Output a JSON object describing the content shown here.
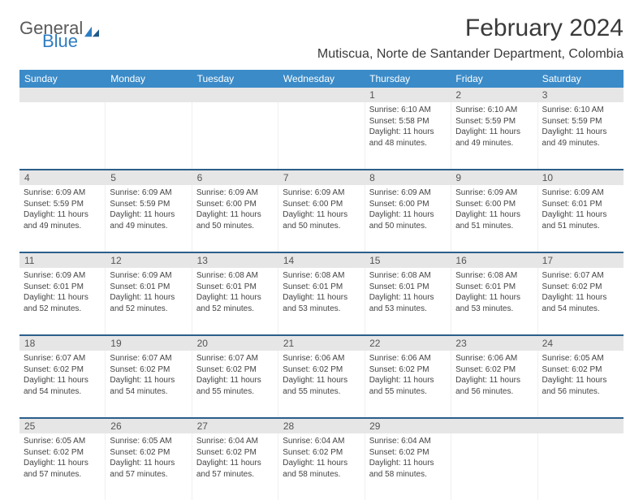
{
  "logo": {
    "text1": "General",
    "text2": "Blue"
  },
  "title": "February 2024",
  "location": "Mutiscua, Norte de Santander Department, Colombia",
  "colors": {
    "header_bg": "#3b8bc8",
    "header_text": "#ffffff",
    "daynum_bg": "#e6e6e6",
    "border_top": "#2b5f8a",
    "text": "#444444",
    "logo_gray": "#5a5a5a",
    "logo_blue": "#2e7cc1"
  },
  "day_headers": [
    "Sunday",
    "Monday",
    "Tuesday",
    "Wednesday",
    "Thursday",
    "Friday",
    "Saturday"
  ],
  "weeks": [
    {
      "nums": [
        "",
        "",
        "",
        "",
        "1",
        "2",
        "3"
      ],
      "cells": [
        null,
        null,
        null,
        null,
        {
          "sr": "Sunrise: 6:10 AM",
          "ss": "Sunset: 5:58 PM",
          "d1": "Daylight: 11 hours",
          "d2": "and 48 minutes."
        },
        {
          "sr": "Sunrise: 6:10 AM",
          "ss": "Sunset: 5:59 PM",
          "d1": "Daylight: 11 hours",
          "d2": "and 49 minutes."
        },
        {
          "sr": "Sunrise: 6:10 AM",
          "ss": "Sunset: 5:59 PM",
          "d1": "Daylight: 11 hours",
          "d2": "and 49 minutes."
        }
      ]
    },
    {
      "nums": [
        "4",
        "5",
        "6",
        "7",
        "8",
        "9",
        "10"
      ],
      "cells": [
        {
          "sr": "Sunrise: 6:09 AM",
          "ss": "Sunset: 5:59 PM",
          "d1": "Daylight: 11 hours",
          "d2": "and 49 minutes."
        },
        {
          "sr": "Sunrise: 6:09 AM",
          "ss": "Sunset: 5:59 PM",
          "d1": "Daylight: 11 hours",
          "d2": "and 49 minutes."
        },
        {
          "sr": "Sunrise: 6:09 AM",
          "ss": "Sunset: 6:00 PM",
          "d1": "Daylight: 11 hours",
          "d2": "and 50 minutes."
        },
        {
          "sr": "Sunrise: 6:09 AM",
          "ss": "Sunset: 6:00 PM",
          "d1": "Daylight: 11 hours",
          "d2": "and 50 minutes."
        },
        {
          "sr": "Sunrise: 6:09 AM",
          "ss": "Sunset: 6:00 PM",
          "d1": "Daylight: 11 hours",
          "d2": "and 50 minutes."
        },
        {
          "sr": "Sunrise: 6:09 AM",
          "ss": "Sunset: 6:00 PM",
          "d1": "Daylight: 11 hours",
          "d2": "and 51 minutes."
        },
        {
          "sr": "Sunrise: 6:09 AM",
          "ss": "Sunset: 6:01 PM",
          "d1": "Daylight: 11 hours",
          "d2": "and 51 minutes."
        }
      ]
    },
    {
      "nums": [
        "11",
        "12",
        "13",
        "14",
        "15",
        "16",
        "17"
      ],
      "cells": [
        {
          "sr": "Sunrise: 6:09 AM",
          "ss": "Sunset: 6:01 PM",
          "d1": "Daylight: 11 hours",
          "d2": "and 52 minutes."
        },
        {
          "sr": "Sunrise: 6:09 AM",
          "ss": "Sunset: 6:01 PM",
          "d1": "Daylight: 11 hours",
          "d2": "and 52 minutes."
        },
        {
          "sr": "Sunrise: 6:08 AM",
          "ss": "Sunset: 6:01 PM",
          "d1": "Daylight: 11 hours",
          "d2": "and 52 minutes."
        },
        {
          "sr": "Sunrise: 6:08 AM",
          "ss": "Sunset: 6:01 PM",
          "d1": "Daylight: 11 hours",
          "d2": "and 53 minutes."
        },
        {
          "sr": "Sunrise: 6:08 AM",
          "ss": "Sunset: 6:01 PM",
          "d1": "Daylight: 11 hours",
          "d2": "and 53 minutes."
        },
        {
          "sr": "Sunrise: 6:08 AM",
          "ss": "Sunset: 6:01 PM",
          "d1": "Daylight: 11 hours",
          "d2": "and 53 minutes."
        },
        {
          "sr": "Sunrise: 6:07 AM",
          "ss": "Sunset: 6:02 PM",
          "d1": "Daylight: 11 hours",
          "d2": "and 54 minutes."
        }
      ]
    },
    {
      "nums": [
        "18",
        "19",
        "20",
        "21",
        "22",
        "23",
        "24"
      ],
      "cells": [
        {
          "sr": "Sunrise: 6:07 AM",
          "ss": "Sunset: 6:02 PM",
          "d1": "Daylight: 11 hours",
          "d2": "and 54 minutes."
        },
        {
          "sr": "Sunrise: 6:07 AM",
          "ss": "Sunset: 6:02 PM",
          "d1": "Daylight: 11 hours",
          "d2": "and 54 minutes."
        },
        {
          "sr": "Sunrise: 6:07 AM",
          "ss": "Sunset: 6:02 PM",
          "d1": "Daylight: 11 hours",
          "d2": "and 55 minutes."
        },
        {
          "sr": "Sunrise: 6:06 AM",
          "ss": "Sunset: 6:02 PM",
          "d1": "Daylight: 11 hours",
          "d2": "and 55 minutes."
        },
        {
          "sr": "Sunrise: 6:06 AM",
          "ss": "Sunset: 6:02 PM",
          "d1": "Daylight: 11 hours",
          "d2": "and 55 minutes."
        },
        {
          "sr": "Sunrise: 6:06 AM",
          "ss": "Sunset: 6:02 PM",
          "d1": "Daylight: 11 hours",
          "d2": "and 56 minutes."
        },
        {
          "sr": "Sunrise: 6:05 AM",
          "ss": "Sunset: 6:02 PM",
          "d1": "Daylight: 11 hours",
          "d2": "and 56 minutes."
        }
      ]
    },
    {
      "nums": [
        "25",
        "26",
        "27",
        "28",
        "29",
        "",
        ""
      ],
      "cells": [
        {
          "sr": "Sunrise: 6:05 AM",
          "ss": "Sunset: 6:02 PM",
          "d1": "Daylight: 11 hours",
          "d2": "and 57 minutes."
        },
        {
          "sr": "Sunrise: 6:05 AM",
          "ss": "Sunset: 6:02 PM",
          "d1": "Daylight: 11 hours",
          "d2": "and 57 minutes."
        },
        {
          "sr": "Sunrise: 6:04 AM",
          "ss": "Sunset: 6:02 PM",
          "d1": "Daylight: 11 hours",
          "d2": "and 57 minutes."
        },
        {
          "sr": "Sunrise: 6:04 AM",
          "ss": "Sunset: 6:02 PM",
          "d1": "Daylight: 11 hours",
          "d2": "and 58 minutes."
        },
        {
          "sr": "Sunrise: 6:04 AM",
          "ss": "Sunset: 6:02 PM",
          "d1": "Daylight: 11 hours",
          "d2": "and 58 minutes."
        },
        null,
        null
      ]
    }
  ]
}
